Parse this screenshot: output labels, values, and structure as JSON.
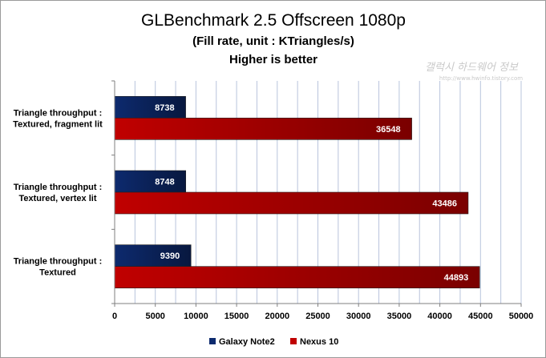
{
  "chart_data": {
    "type": "bar",
    "orientation": "horizontal",
    "title": "GLBenchmark 2.5 Offscreen 1080p",
    "subtitle_lines": [
      "(Fill rate, unit : KTriangles/s)",
      "Higher is better"
    ],
    "categories": [
      [
        "Triangle throughput :",
        "Textured, fragment lit"
      ],
      [
        "Triangle throughput :",
        "Textured, vertex lit"
      ],
      [
        "Triangle throughput :",
        "Textured"
      ]
    ],
    "series": [
      {
        "name": "Galaxy Note2",
        "color": "#0d2a6e",
        "values": [
          8738,
          8748,
          9390
        ]
      },
      {
        "name": "Nexus 10",
        "color": "#c00000",
        "values": [
          36548,
          43486,
          44893
        ]
      }
    ],
    "xlim": [
      0,
      50000
    ],
    "xticks": [
      0,
      5000,
      10000,
      15000,
      20000,
      25000,
      30000,
      35000,
      40000,
      45000,
      50000
    ],
    "grid": true,
    "legend_position": "bottom",
    "colors": {
      "grid": "#b8c4dc",
      "axis": "#7f7f7f"
    }
  },
  "watermark": {
    "text": "갤럭시 하드웨어 정보",
    "url": "http://www.hwinfo.tistory.com"
  }
}
